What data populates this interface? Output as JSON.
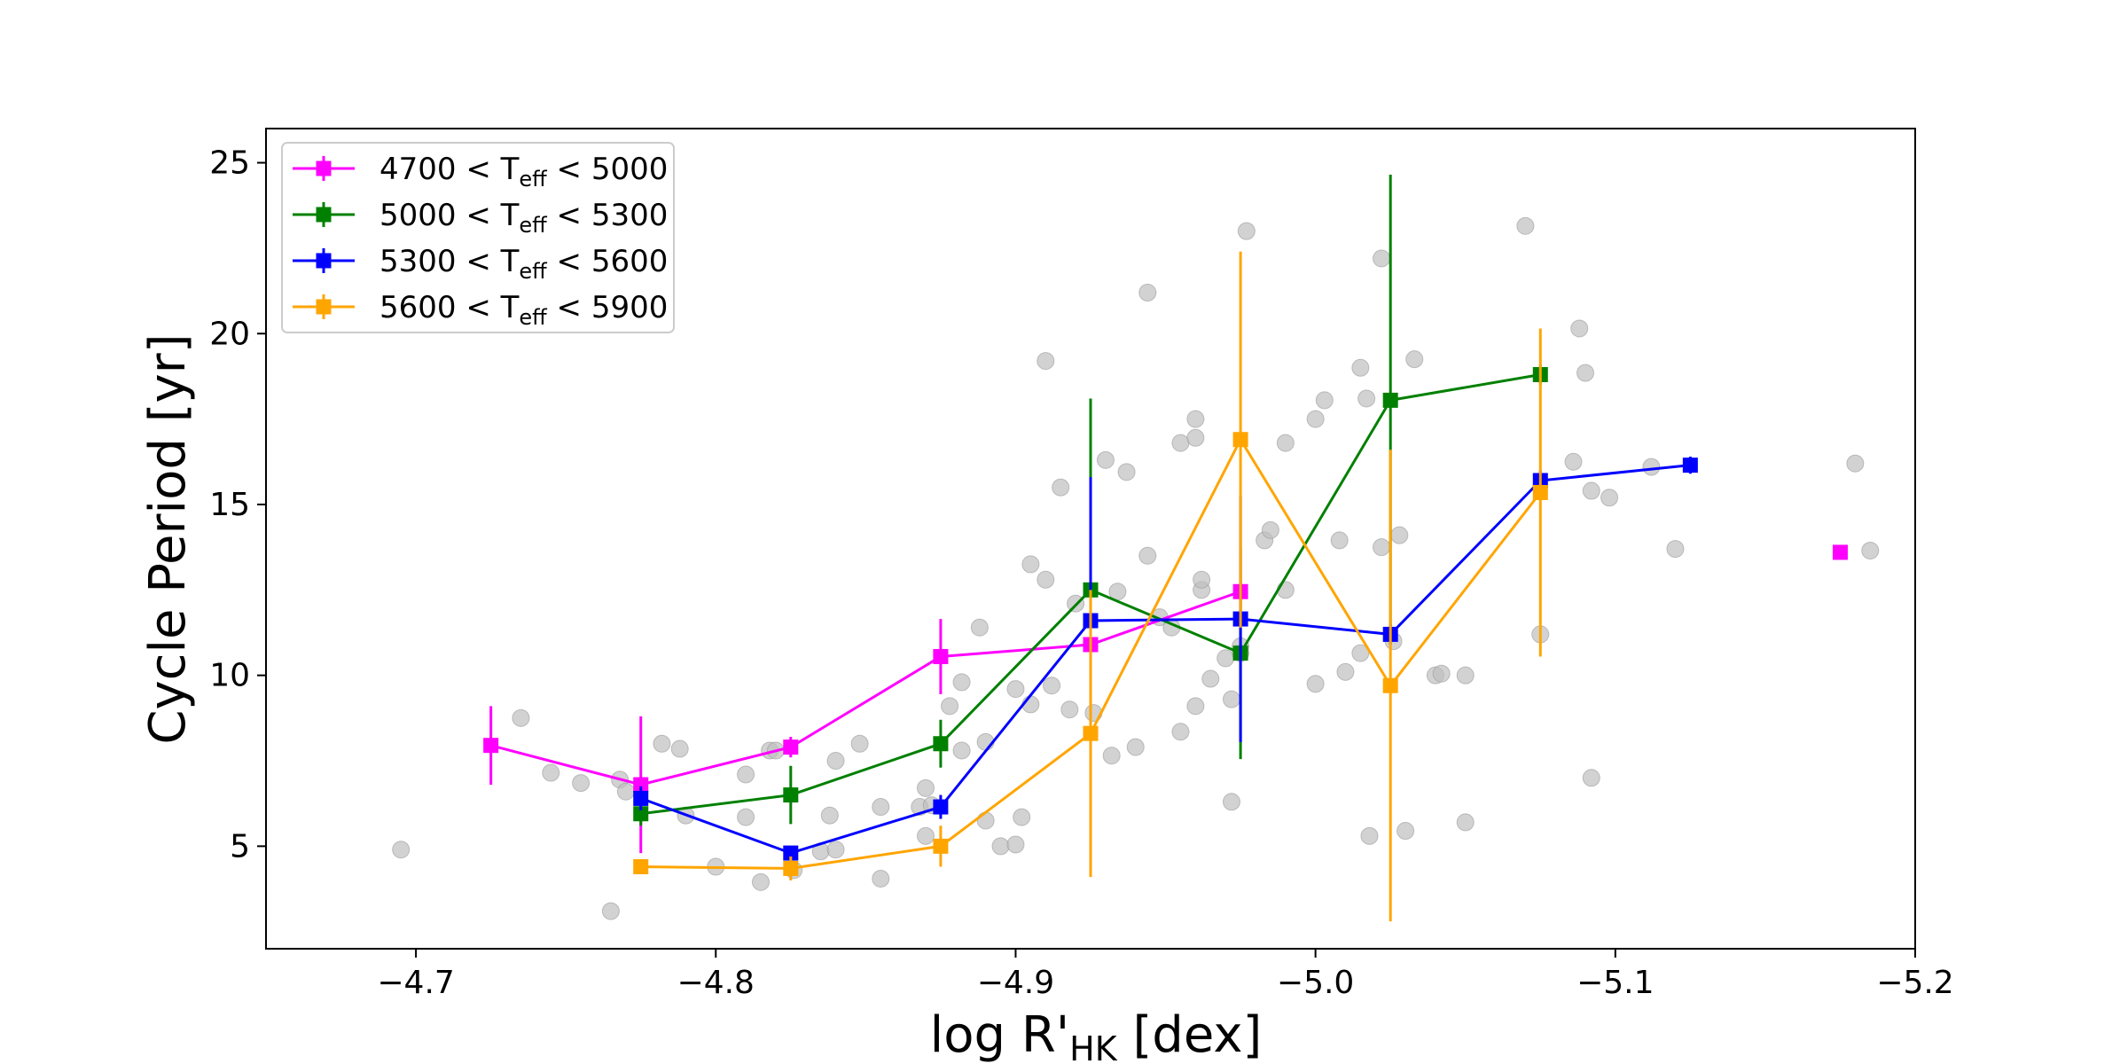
{
  "chart_data": {
    "type": "scatter",
    "xlabel": "log R'HK [dex]",
    "xlabel_parts": {
      "main": "log R'",
      "sub": "HK",
      "tail": " [dex]"
    },
    "ylabel": "Cycle Period [yr]",
    "xlim": [
      -4.65,
      -5.2
    ],
    "ylim": [
      2,
      26
    ],
    "x_ticks": [
      -4.7,
      -4.8,
      -4.9,
      -5.0,
      -5.1,
      -5.2
    ],
    "x_tick_labels": [
      "−4.7",
      "−4.8",
      "−4.9",
      "−5.0",
      "−5.1",
      "−5.2"
    ],
    "y_ticks": [
      5,
      10,
      15,
      20,
      25
    ],
    "y_tick_labels": [
      "5",
      "10",
      "15",
      "20",
      "25"
    ],
    "legend_position": "upper-left",
    "background_points": {
      "color": "#bfbfbf",
      "points": [
        [
          -4.695,
          4.9
        ],
        [
          -4.735,
          8.75
        ],
        [
          -4.745,
          7.15
        ],
        [
          -4.755,
          6.85
        ],
        [
          -4.765,
          3.1
        ],
        [
          -4.768,
          6.95
        ],
        [
          -4.77,
          6.6
        ],
        [
          -4.782,
          8.0
        ],
        [
          -4.788,
          7.85
        ],
        [
          -4.79,
          5.9
        ],
        [
          -4.8,
          4.4
        ],
        [
          -4.81,
          7.1
        ],
        [
          -4.81,
          5.85
        ],
        [
          -4.815,
          3.95
        ],
        [
          -4.818,
          7.8
        ],
        [
          -4.82,
          7.8
        ],
        [
          -4.826,
          4.3
        ],
        [
          -4.835,
          4.85
        ],
        [
          -4.838,
          5.9
        ],
        [
          -4.84,
          7.5
        ],
        [
          -4.84,
          4.9
        ],
        [
          -4.848,
          8.0
        ],
        [
          -4.855,
          6.15
        ],
        [
          -4.855,
          4.05
        ],
        [
          -4.868,
          6.15
        ],
        [
          -4.87,
          6.7
        ],
        [
          -4.87,
          5.3
        ],
        [
          -4.872,
          6.2
        ],
        [
          -4.878,
          9.1
        ],
        [
          -4.882,
          9.8
        ],
        [
          -4.882,
          7.8
        ],
        [
          -4.888,
          11.4
        ],
        [
          -4.89,
          8.05
        ],
        [
          -4.89,
          5.75
        ],
        [
          -4.895,
          5.0
        ],
        [
          -4.9,
          9.6
        ],
        [
          -4.902,
          5.85
        ],
        [
          -4.9,
          5.05
        ],
        [
          -4.905,
          9.15
        ],
        [
          -4.905,
          13.25
        ],
        [
          -4.91,
          19.2
        ],
        [
          -4.91,
          12.8
        ],
        [
          -4.912,
          9.7
        ],
        [
          -4.915,
          15.5
        ],
        [
          -4.918,
          9.0
        ],
        [
          -4.92,
          12.1
        ],
        [
          -4.926,
          8.9
        ],
        [
          -4.93,
          16.3
        ],
        [
          -4.932,
          7.65
        ],
        [
          -4.934,
          12.45
        ],
        [
          -4.937,
          15.95
        ],
        [
          -4.94,
          7.9
        ],
        [
          -4.944,
          13.5
        ],
        [
          -4.944,
          21.2
        ],
        [
          -4.948,
          11.7
        ],
        [
          -4.952,
          11.4
        ],
        [
          -4.955,
          8.35
        ],
        [
          -4.955,
          16.8
        ],
        [
          -4.96,
          17.5
        ],
        [
          -4.96,
          16.95
        ],
        [
          -4.96,
          9.1
        ],
        [
          -4.962,
          12.5
        ],
        [
          -4.962,
          12.8
        ],
        [
          -4.965,
          9.9
        ],
        [
          -4.97,
          10.5
        ],
        [
          -4.972,
          6.3
        ],
        [
          -4.972,
          9.3
        ],
        [
          -4.975,
          10.65
        ],
        [
          -4.975,
          10.85
        ],
        [
          -4.977,
          23.0
        ],
        [
          -4.983,
          13.95
        ],
        [
          -4.985,
          14.25
        ],
        [
          -4.99,
          16.8
        ],
        [
          -4.99,
          12.5
        ],
        [
          -5.0,
          9.75
        ],
        [
          -5.0,
          17.5
        ],
        [
          -5.003,
          18.05
        ],
        [
          -5.008,
          13.95
        ],
        [
          -5.01,
          10.1
        ],
        [
          -5.015,
          19.0
        ],
        [
          -5.015,
          10.65
        ],
        [
          -5.017,
          18.1
        ],
        [
          -5.018,
          5.3
        ],
        [
          -5.022,
          13.75
        ],
        [
          -5.022,
          22.2
        ],
        [
          -5.026,
          11.0
        ],
        [
          -5.028,
          14.1
        ],
        [
          -5.03,
          5.45
        ],
        [
          -5.033,
          19.25
        ],
        [
          -5.04,
          10.0
        ],
        [
          -5.042,
          10.05
        ],
        [
          -5.05,
          5.7
        ],
        [
          -5.05,
          10.0
        ],
        [
          -5.07,
          23.15
        ],
        [
          -5.075,
          11.2
        ],
        [
          -5.086,
          16.25
        ],
        [
          -5.088,
          20.15
        ],
        [
          -5.092,
          15.4
        ],
        [
          -5.092,
          7.0
        ],
        [
          -5.09,
          18.85
        ],
        [
          -5.098,
          15.2
        ],
        [
          -5.112,
          16.1
        ],
        [
          -5.12,
          13.7
        ],
        [
          -5.18,
          16.2
        ],
        [
          -5.185,
          13.65
        ]
      ]
    },
    "series": [
      {
        "name": "4700 < Teff < 5000",
        "label_parts": {
          "pre": "4700 < T",
          "sub": "eff",
          "post": " < 5000"
        },
        "color": "#ff00ff",
        "points": [
          [
            -4.725,
            7.95
          ],
          [
            -4.775,
            6.8
          ],
          [
            -4.825,
            7.9
          ],
          [
            -4.875,
            10.55
          ],
          [
            -4.925,
            10.9
          ],
          [
            -4.975,
            12.45
          ]
        ],
        "yerr": [
          1.15,
          2.0,
          0.3,
          1.1,
          0.35,
          0.3
        ],
        "extra_points": [
          [
            -5.175,
            13.6
          ]
        ]
      },
      {
        "name": "5000 < Teff < 5300",
        "label_parts": {
          "pre": "5000 < T",
          "sub": "eff",
          "post": " < 5300"
        },
        "color": "#008000",
        "points": [
          [
            -4.775,
            5.95
          ],
          [
            -4.825,
            6.5
          ],
          [
            -4.875,
            8.0
          ],
          [
            -4.925,
            12.5
          ],
          [
            -4.975,
            10.65
          ],
          [
            -5.025,
            18.05
          ],
          [
            -5.075,
            18.8
          ]
        ],
        "yerr": [
          0.35,
          0.85,
          0.7,
          5.6,
          3.1,
          6.6,
          0.3
        ]
      },
      {
        "name": "5300 < Teff < 5600",
        "label_parts": {
          "pre": "5300 < T",
          "sub": "eff",
          "post": " < 5600"
        },
        "color": "#0000ff",
        "points": [
          [
            -4.775,
            6.4
          ],
          [
            -4.825,
            4.8
          ],
          [
            -4.875,
            6.15
          ],
          [
            -4.925,
            11.6
          ],
          [
            -4.975,
            11.65
          ],
          [
            -5.025,
            11.2
          ],
          [
            -5.075,
            15.7
          ],
          [
            -5.125,
            16.15
          ]
        ],
        "yerr": [
          0.35,
          0.2,
          0.35,
          4.2,
          3.6,
          0.3,
          0.3,
          0.25
        ]
      },
      {
        "name": "5600 < Teff < 5900",
        "label_parts": {
          "pre": "5600 < T",
          "sub": "eff",
          "post": " < 5900"
        },
        "color": "#ffa500",
        "points": [
          [
            -4.775,
            4.4
          ],
          [
            -4.825,
            4.35
          ],
          [
            -4.875,
            5.0
          ],
          [
            -4.925,
            8.3
          ],
          [
            -4.975,
            16.9
          ],
          [
            -5.025,
            9.7
          ],
          [
            -5.075,
            15.35
          ]
        ],
        "yerr": [
          0.1,
          0.35,
          0.6,
          4.2,
          5.5,
          6.9,
          4.8
        ]
      }
    ]
  }
}
